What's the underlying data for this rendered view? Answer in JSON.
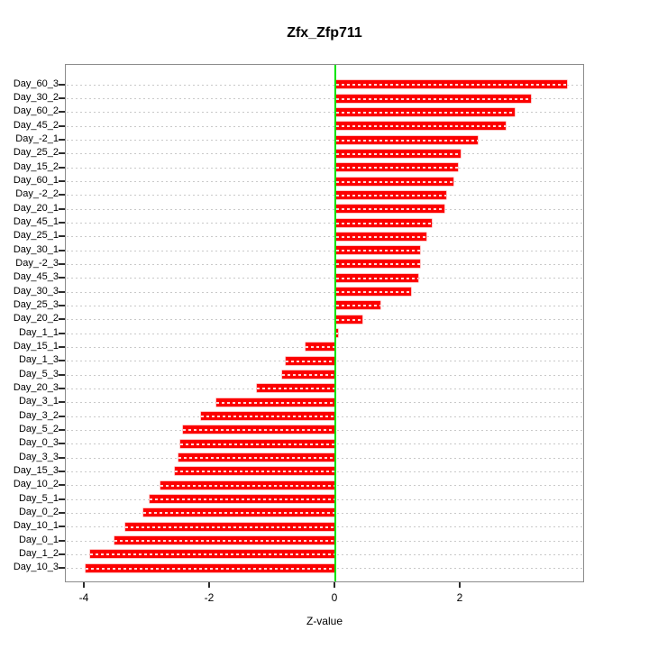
{
  "title": "Zfx_Zfp711",
  "xlabel": "Z-value",
  "chart_data": {
    "type": "bar",
    "orientation": "horizontal",
    "title": "Zfx_Zfp711",
    "xlabel": "Z-value",
    "ylabel": "",
    "order": "top-to-bottom",
    "categories": [
      "Day_60_3",
      "Day_30_2",
      "Day_60_2",
      "Day_45_2",
      "Day_-2_1",
      "Day_25_2",
      "Day_15_2",
      "Day_60_1",
      "Day_-2_2",
      "Day_20_1",
      "Day_45_1",
      "Day_25_1",
      "Day_30_1",
      "Day_-2_3",
      "Day_45_3",
      "Day_30_3",
      "Day_25_3",
      "Day_20_2",
      "Day_1_1",
      "Day_15_1",
      "Day_1_3",
      "Day_5_3",
      "Day_20_3",
      "Day_3_1",
      "Day_3_2",
      "Day_5_2",
      "Day_0_3",
      "Day_3_3",
      "Day_15_3",
      "Day_10_2",
      "Day_5_1",
      "Day_0_2",
      "Day_10_1",
      "Day_0_1",
      "Day_1_2",
      "Day_10_3"
    ],
    "values": [
      3.68,
      3.1,
      2.84,
      2.7,
      2.25,
      1.98,
      1.94,
      1.87,
      1.76,
      1.73,
      1.52,
      1.43,
      1.34,
      1.33,
      1.31,
      1.19,
      0.7,
      0.41,
      0.03,
      -0.46,
      -0.77,
      -0.83,
      -1.24,
      -1.88,
      -2.12,
      -2.42,
      -2.46,
      -2.48,
      -2.54,
      -2.78,
      -2.94,
      -3.05,
      -3.34,
      -3.51,
      -3.9,
      -3.97
    ],
    "x_ticks": [
      -4,
      -2,
      0,
      2
    ],
    "xlim": [
      -4.28,
      3.99
    ],
    "grid": true,
    "legend": "none",
    "bar_color": "#fc0000",
    "bar_stripe_color": "#ffffff",
    "zero_line_color": "#00e400",
    "grid_color": "#c9c9c9",
    "box_color": "#8c8c8c"
  }
}
